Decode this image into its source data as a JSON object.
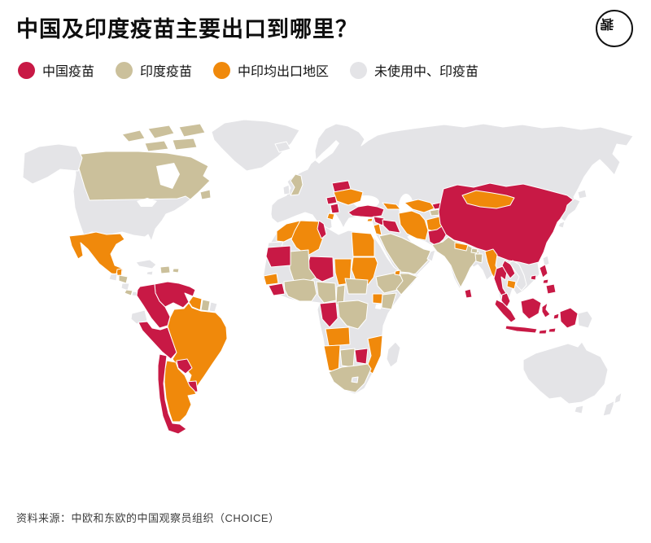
{
  "page": {
    "title": "中国及印度疫苗主要出口到哪里？",
    "source": "资料来源：中欧和东欧的中国观察员组织（CHOICE）",
    "logo_glyph": "端"
  },
  "legend": {
    "items": [
      {
        "key": "china",
        "label": "中国疫苗",
        "color": "#C81945"
      },
      {
        "key": "india",
        "label": "印度疫苗",
        "color": "#CBC09B"
      },
      {
        "key": "both",
        "label": "中印均出口地区",
        "color": "#F0890B"
      },
      {
        "key": "none",
        "label": "未使用中、印疫苗",
        "color": "#E4E4E7"
      }
    ]
  },
  "chart_data": {
    "type": "choropleth-world-map",
    "title": "中国及印度疫苗主要出口到哪里？",
    "legend_position": "top",
    "legend": [
      "中国疫苗",
      "印度疫苗",
      "中印均出口地区",
      "未使用中、印疫苗"
    ],
    "categories": {
      "china_vaccine_only": [
        "Venezuela",
        "Colombia",
        "Peru",
        "Chile",
        "Paraguay",
        "Uruguay",
        "Belarus",
        "Hungary",
        "Serbia",
        "Turkey",
        "Syria",
        "Iraq",
        "Pakistan",
        "Kyrgyzstan",
        "Tunisia",
        "Mauritania",
        "Niger",
        "Guinea",
        "Gabon / Republic of Congo",
        "Zimbabwe",
        "China",
        "Laos",
        "Thailand",
        "Malaysia",
        "Indonesia",
        "Philippines",
        "Sri Lanka"
      ],
      "india_vaccine_only": [
        "Canada",
        "Honduras",
        "Costa Rica",
        "Hispaniola",
        "Puerto Rico",
        "Suriname",
        "United Kingdom",
        "Mali",
        "West Africa (Ghana / Côte d'Ivoire / Burkina Faso)",
        "Nigeria",
        "Cameroon",
        "Central African Republic",
        "Ethiopia",
        "Somalia",
        "Kenya",
        "DR Congo",
        "Botswana",
        "South Africa",
        "Saudi Arabia",
        "Tajikistan",
        "India",
        "Bangladesh",
        "Bhutan"
      ],
      "both_china_and_india": [
        "Mexico",
        "Belize",
        "Guyana",
        "Brazil",
        "Bolivia",
        "Argentina",
        "Ukraine",
        "Moldova",
        "Albania / North Macedonia",
        "Georgia / Azerbaijan",
        "Cyprus",
        "Israel / Jordan",
        "Iran",
        "Afghanistan",
        "Uzbekistan / Turkmenistan",
        "Morocco",
        "Algeria",
        "Egypt",
        "Sudan",
        "Chad",
        "Senegal",
        "Djibouti",
        "Uganda",
        "Angola",
        "Namibia",
        "Mozambique",
        "Nepal",
        "Myanmar",
        "Cambodia",
        "Mongolia"
      ],
      "neither": [
        "United States",
        "Alaska",
        "Greenland",
        "Iceland",
        "Guatemala",
        "Nicaragua",
        "Panama",
        "Cuba",
        "Jamaica",
        "French Guiana",
        "Ecuador",
        "Ireland",
        "Western Europe",
        "Scandinavia",
        "Russia",
        "Kazakhstan",
        "Libya",
        "Western Sahara",
        "South Sudan",
        "Tanzania",
        "Zambia",
        "Lesotho",
        "Madagascar",
        "Oman",
        "Japan",
        "South Korea",
        "Taiwan",
        "Vietnam",
        "Papua New Guinea",
        "Australia",
        "New Zealand"
      ]
    }
  },
  "regions": {
    "na-base": "none",
    "canada": "india",
    "arctic-islands": "india",
    "newfoundland": "india",
    "hudson-bay": "water",
    "great-lakes": "water",
    "alaska": "none",
    "greenland": "none",
    "iceland": "none",
    "mexico": "both",
    "belize": "both",
    "guatemala": "none",
    "honduras": "india",
    "nicaragua": "none",
    "costa-rica": "india",
    "panama": "none",
    "cuba": "none",
    "hispaniola": "india",
    "jamaica": "none",
    "puerto-rico": "india",
    "venezuela": "china",
    "colombia": "china",
    "guyana": "both",
    "suriname": "india",
    "french-guiana": "none",
    "ecuador": "none",
    "peru": "china",
    "brazil-bolivia": "both",
    "paraguay": "china",
    "uruguay": "china",
    "argentina": "both",
    "chile": "china",
    "eurasia-base": "none",
    "baltic-sea": "water",
    "black-sea": "water",
    "caspian-sea": "water",
    "uk": "india",
    "ireland": "none",
    "belarus": "china",
    "ukraine": "both",
    "hungary": "china",
    "serbia": "china",
    "albania-nmk": "both",
    "turkey": "china",
    "cyprus": "both",
    "syria": "china",
    "iraq": "china",
    "israel-jordan": "both",
    "caucasus": "both",
    "iran": "both",
    "afghanistan": "both",
    "pakistan": "china",
    "uzbek-turkmen": "both",
    "kyrgyzstan": "china",
    "tajikistan": "india",
    "saudi-arabia": "india",
    "oman": "none",
    "india": "india",
    "nepal": "both",
    "bhutan": "india",
    "bangladesh": "india",
    "sri-lanka": "china",
    "china": "china",
    "mongolia": "both",
    "japan": "none",
    "taiwan": "none",
    "myanmar": "both",
    "thailand": "china",
    "laos": "china",
    "vietnam": "none",
    "cambodia": "both",
    "hainan": "china",
    "malaysia": "china",
    "sumatra": "china",
    "java": "china",
    "borneo": "china",
    "sulawesi": "china",
    "moluccas": "china",
    "lesser-sunda": "china",
    "papua-indonesia": "china",
    "papua-new-guinea": "none",
    "philippines": "china",
    "africa-base": "none",
    "morocco": "both",
    "western-sahara": "none",
    "algeria": "both",
    "tunisia": "china",
    "egypt": "both",
    "sudan": "both",
    "chad": "both",
    "niger": "china",
    "mali": "india",
    "mauritania": "china",
    "senegal": "both",
    "guinea": "china",
    "west-africa": "india",
    "nigeria": "india",
    "cameroon": "india",
    "car": "india",
    "ethiopia": "india",
    "somalia": "india",
    "djibouti": "both",
    "kenya": "india",
    "uganda": "both",
    "lake-victoria": "water",
    "gabon-congo": "china",
    "drc": "india",
    "angola": "both",
    "namibia": "both",
    "botswana": "india",
    "zimbabwe": "china",
    "mozambique": "both",
    "south-africa": "india",
    "lesotho": "none",
    "madagascar": "none",
    "australia": "none",
    "tasmania": "none",
    "new-zealand": "none"
  }
}
